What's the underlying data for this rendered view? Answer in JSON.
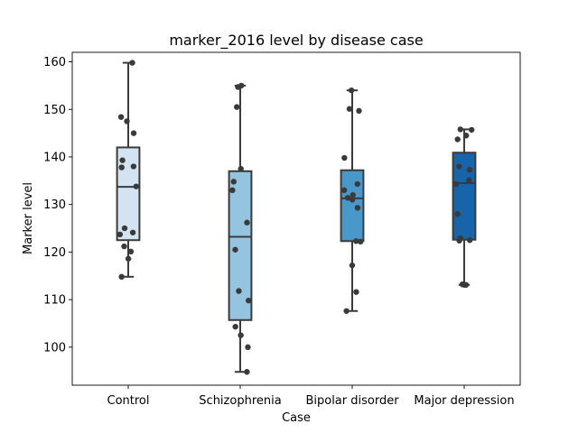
{
  "chart_data": {
    "type": "box",
    "title": "marker_2016 level by disease case",
    "xlabel": "Case",
    "ylabel": "Marker level",
    "ylim": [
      92,
      162
    ],
    "yticks": [
      100,
      110,
      120,
      130,
      140,
      150,
      160
    ],
    "grid": false,
    "categories": [
      "Control",
      "Schizophrenia",
      "Bipolar disorder",
      "Major depression"
    ],
    "colors": [
      "#d4e3f2",
      "#94c4df",
      "#4a98c9",
      "#1764ab"
    ],
    "boxes": [
      {
        "min": 114.8,
        "q1": 122.5,
        "median": 133.7,
        "q3": 142.0,
        "max": 159.8
      },
      {
        "min": 94.8,
        "q1": 105.7,
        "median": 123.2,
        "q3": 137.0,
        "max": 155.0
      },
      {
        "min": 107.6,
        "q1": 122.3,
        "median": 131.3,
        "q3": 137.2,
        "max": 154.0
      },
      {
        "min": 113.1,
        "q1": 122.6,
        "median": 134.5,
        "q3": 140.9,
        "max": 145.8
      }
    ],
    "points": [
      [
        159.8,
        148.4,
        147.5,
        145.0,
        139.3,
        138.0,
        137.8,
        133.8,
        125.0,
        124.1,
        123.7,
        121.2,
        120.1,
        118.6,
        114.8
      ],
      [
        155.0,
        154.7,
        150.5,
        137.5,
        134.8,
        133.0,
        126.2,
        120.5,
        111.8,
        109.8,
        104.3,
        102.5,
        100.0,
        94.8
      ],
      [
        154.0,
        150.1,
        149.7,
        139.8,
        134.3,
        133.0,
        132.0,
        131.4,
        131.0,
        129.3,
        122.3,
        122.2,
        117.2,
        111.6,
        107.6
      ],
      [
        145.8,
        145.7,
        144.5,
        143.7,
        138.0,
        137.3,
        135.1,
        134.3,
        128.0,
        122.9,
        122.5,
        122.4,
        113.2,
        113.1,
        113.1
      ]
    ]
  }
}
